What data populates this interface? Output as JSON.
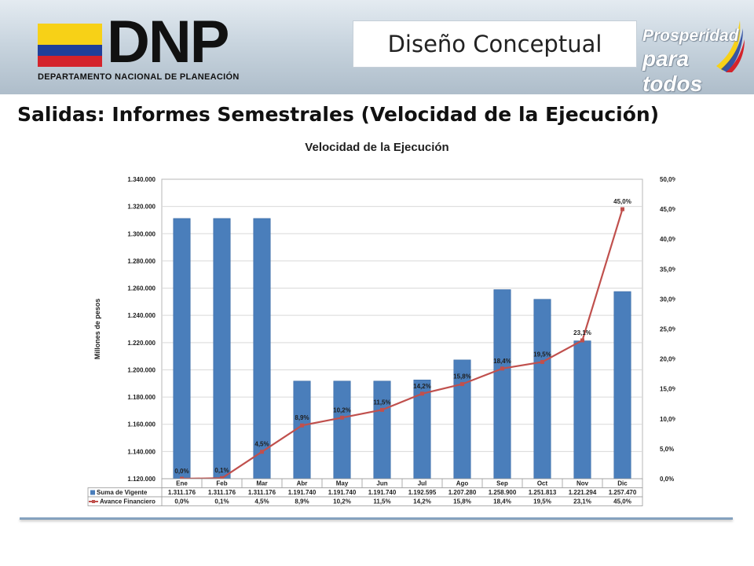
{
  "slide": {
    "dnp_logo": "DNP",
    "dnp_subtitle": "DEPARTAMENTO NACIONAL DE PLANEACIÓN",
    "title_box": "Diseño Conceptual",
    "prosperidad_line1": "Prosperidad",
    "prosperidad_line2": "para todos",
    "heading": "Salidas: Informes Semestrales (Velocidad de la Ejecución)"
  },
  "colors": {
    "bar": "#4a7ebb",
    "line": "#c0504d",
    "flag_yellow": "#f7d117",
    "flag_blue": "#1f3f9a",
    "flag_red": "#d4232b"
  },
  "chart_data": {
    "type": "bar",
    "title": "Velocidad de la Ejecución",
    "ylabel": "Millones de pesos",
    "categories": [
      "Ene",
      "Feb",
      "Mar",
      "Abr",
      "May",
      "Jun",
      "Jul",
      "Ago",
      "Sep",
      "Oct",
      "Nov",
      "Dic"
    ],
    "ylim": [
      1120000,
      1340000
    ],
    "y_ticks": [
      "1.120.000",
      "1.140.000",
      "1.160.000",
      "1.180.000",
      "1.200.000",
      "1.220.000",
      "1.240.000",
      "1.260.000",
      "1.280.000",
      "1.300.000",
      "1.320.000",
      "1.340.000"
    ],
    "y2lim": [
      0,
      50
    ],
    "y2_ticks": [
      "0,0%",
      "5,0%",
      "10,0%",
      "15,0%",
      "20,0%",
      "25,0%",
      "30,0%",
      "35,0%",
      "40,0%",
      "45,0%",
      "50,0%"
    ],
    "grid": true,
    "legend": "data-table",
    "series": [
      {
        "name": "Suma de Vigente",
        "type": "bar",
        "axis": "left",
        "values": [
          1311176,
          1311176,
          1311176,
          1191740,
          1191740,
          1191740,
          1192595,
          1207280,
          1258900,
          1251813,
          1221294,
          1257470
        ],
        "labels": [
          "1.311.176",
          "1.311.176",
          "1.311.176",
          "1.191.740",
          "1.191.740",
          "1.191.740",
          "1.192.595",
          "1.207.280",
          "1.258.900",
          "1.251.813",
          "1.221.294",
          "1.257.470"
        ]
      },
      {
        "name": "Avance Financiero",
        "type": "line",
        "axis": "right",
        "values": [
          0.0,
          0.1,
          4.5,
          8.9,
          10.2,
          11.5,
          14.2,
          15.8,
          18.4,
          19.5,
          23.1,
          45.0
        ],
        "labels": [
          "0,0%",
          "0,1%",
          "4,5%",
          "8,9%",
          "10,2%",
          "11,5%",
          "14,2%",
          "15,8%",
          "18,4%",
          "19,5%",
          "23,1%",
          "45,0%"
        ]
      }
    ]
  }
}
